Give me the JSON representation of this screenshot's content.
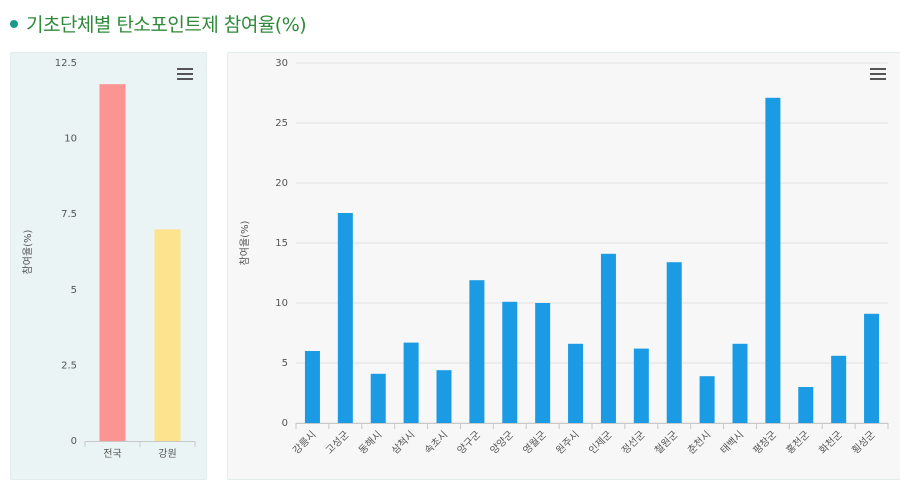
{
  "page": {
    "title": "기초단체별 탄소포인트제 참여율(%)"
  },
  "colors": {
    "title": "#2f8a3a",
    "dot": "#1a9a8a",
    "bar_blue": "#1a9be3",
    "bar_red": "#fb9492",
    "bar_yellow": "#fee38e"
  },
  "chart_data": [
    {
      "type": "bar",
      "ylabel": "참여율(%)",
      "ylim": [
        0,
        12.5
      ],
      "yticks": [
        "0",
        "2.5",
        "5",
        "7.5",
        "10",
        "12.5"
      ],
      "categories": [
        "전국",
        "강원"
      ],
      "values": [
        11.8,
        7.0
      ],
      "bar_colors": [
        "#fb9492",
        "#fee38e"
      ],
      "grid": false
    },
    {
      "type": "bar",
      "ylabel": "참여율(%)",
      "ylim": [
        0,
        30
      ],
      "yticks": [
        "0",
        "5",
        "10",
        "15",
        "20",
        "25",
        "30"
      ],
      "categories": [
        "강릉시",
        "고성군",
        "동해시",
        "삼척시",
        "속초시",
        "양구군",
        "양양군",
        "영월군",
        "원주시",
        "인제군",
        "정선군",
        "철원군",
        "춘천시",
        "태백시",
        "평창군",
        "홍천군",
        "화천군",
        "횡성군"
      ],
      "values": [
        6.0,
        17.5,
        4.1,
        6.7,
        4.4,
        11.9,
        10.1,
        10.0,
        6.6,
        14.1,
        6.2,
        13.4,
        3.9,
        6.6,
        27.1,
        3.0,
        5.6,
        9.1
      ],
      "bar_color": "#1a9be3",
      "grid": true
    }
  ]
}
